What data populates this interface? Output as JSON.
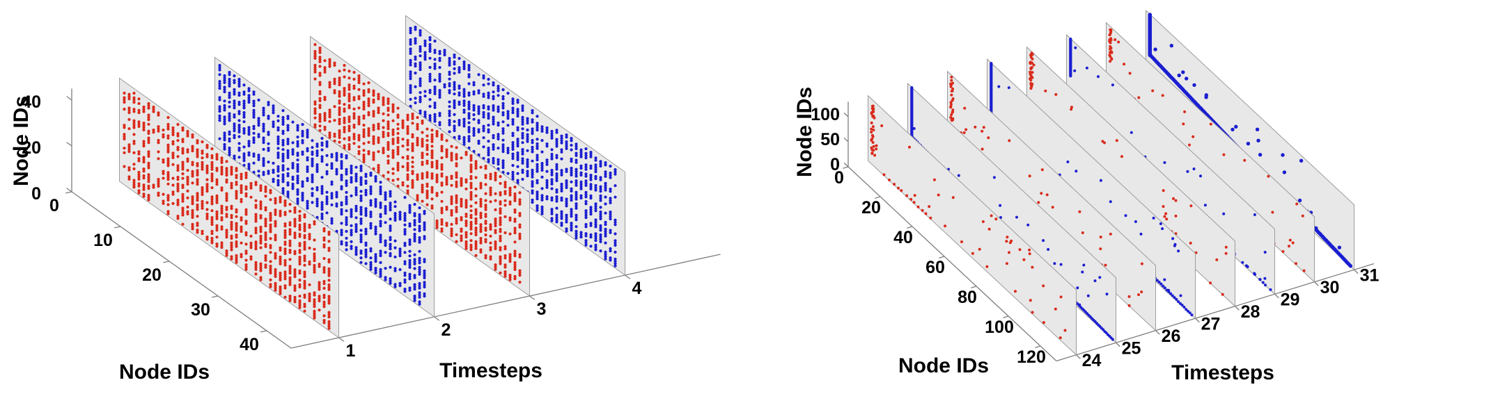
{
  "figure": {
    "background": "#ffffff",
    "panels": [
      "left-3d-node-activity",
      "right-3d-node-activity"
    ]
  },
  "colors": {
    "red": "#d92a1b",
    "blue": "#1b1ed0",
    "plane_fill": "#e8e8e8",
    "plane_edge": "#9c9c9c",
    "axis": "#7d7d7d",
    "text": "#000000"
  },
  "chart_data": [
    {
      "type": "scatter",
      "subtype": "3d-timestep-planes",
      "panel": "left",
      "xlabel": "Node IDs",
      "ylabel": "Timesteps",
      "zlabel": "Node IDs",
      "x_ticks": [
        0,
        10,
        20,
        30,
        40
      ],
      "y_ticks": [
        1,
        2,
        3,
        4
      ],
      "z_ticks": [
        0,
        20,
        40
      ],
      "x_range": [
        0,
        45
      ],
      "y_range": [
        0.5,
        4.5
      ],
      "z_range": [
        0,
        45
      ],
      "legend": "none",
      "grid": "off",
      "planes": [
        {
          "timestep": 1,
          "color": "red",
          "pattern": "dense_columns",
          "seed": 101,
          "fill_min": 0.18,
          "fill_max": 0.8
        },
        {
          "timestep": 2,
          "color": "blue",
          "pattern": "dense_columns",
          "seed": 102,
          "fill_min": 0.18,
          "fill_max": 0.8
        },
        {
          "timestep": 3,
          "color": "red",
          "pattern": "dense_columns",
          "seed": 103,
          "fill_min": 0.18,
          "fill_max": 0.8
        },
        {
          "timestep": 4,
          "color": "blue",
          "pattern": "dense_columns",
          "seed": 104,
          "fill_min": 0.18,
          "fill_max": 0.8
        }
      ]
    },
    {
      "type": "scatter",
      "subtype": "3d-timestep-planes",
      "panel": "right",
      "xlabel": "Node IDs",
      "ylabel": "Timesteps",
      "zlabel": "Node IDs",
      "x_ticks": [
        0,
        20,
        40,
        60,
        80,
        100,
        120
      ],
      "y_ticks": [
        24,
        25,
        26,
        27,
        28,
        29,
        30,
        31
      ],
      "z_ticks": [
        0,
        50,
        100
      ],
      "x_range": [
        0,
        130
      ],
      "y_range": [
        23.5,
        31.5
      ],
      "z_range": [
        0,
        130
      ],
      "legend": "none",
      "grid": "off",
      "planes": [
        {
          "timestep": 24,
          "color": "red",
          "pattern": "sparse_edges",
          "seed": 241,
          "strip": {
            "from": 22,
            "to": 126,
            "fill": 0.3
          },
          "diag": {
            "z0": 26,
            "step": 9,
            "jitter": 4.0
          },
          "edge_run": {
            "x_from": 10,
            "x_to": 42
          },
          "random_n": 30
        },
        {
          "timestep": 25,
          "color": "blue",
          "pattern": "sparse_edges",
          "seed": 251,
          "strip": {
            "from": 12,
            "to": 130,
            "fill": 1.0
          },
          "diag": {
            "z0": 32,
            "step": 1,
            "jitter": 0.3
          },
          "random_n": 26
        },
        {
          "timestep": 26,
          "color": "red",
          "pattern": "sparse_edges",
          "seed": 261,
          "strip": {
            "from": 40,
            "to": 128,
            "fill": 0.34
          },
          "diag": {
            "z0": 22,
            "step": 8,
            "jitter": 4.0
          },
          "edge_run": {
            "x_from": 20,
            "x_to": 50
          },
          "random_n": 32
        },
        {
          "timestep": 27,
          "color": "blue",
          "pattern": "sparse_edges",
          "seed": 271,
          "strip": {
            "from": 30,
            "to": 130,
            "fill": 1.0
          },
          "diag": {
            "z0": 28,
            "step": 1.2,
            "jitter": 0.4
          },
          "random_n": 24
        },
        {
          "timestep": 28,
          "color": "red",
          "pattern": "sparse_edges",
          "seed": 281,
          "strip": {
            "from": 55,
            "to": 128,
            "fill": 0.32
          },
          "diag": {
            "z0": 20,
            "step": 7,
            "jitter": 3.5
          },
          "edge_run": {
            "x_from": 45,
            "x_to": 75
          },
          "random_n": 30
        },
        {
          "timestep": 29,
          "color": "blue",
          "pattern": "sparse_edges",
          "seed": 291,
          "strip": {
            "from": 55,
            "to": 130,
            "fill": 1.0
          },
          "diag": {
            "z0": 24,
            "step": 2.4,
            "jitter": 1.2
          },
          "random_n": 24
        },
        {
          "timestep": 30,
          "color": "red",
          "pattern": "sparse_edges",
          "seed": 301,
          "strip": {
            "from": 60,
            "to": 128,
            "fill": 0.4
          },
          "diag": {
            "z0": 16,
            "step": 6,
            "jitter": 3.0
          },
          "edge_run": {
            "x_from": 60,
            "x_to": 100
          },
          "random_n": 28
        },
        {
          "timestep": 31,
          "color": "blue",
          "pattern": "sparse_edges",
          "seed": 311,
          "strip": {
            "from": 48,
            "to": 130,
            "fill": 1.0
          },
          "diag": {
            "z0": 50,
            "step": 0.8,
            "jitter": 0.15
          },
          "random_n": 28,
          "emphasis": true
        }
      ]
    }
  ]
}
